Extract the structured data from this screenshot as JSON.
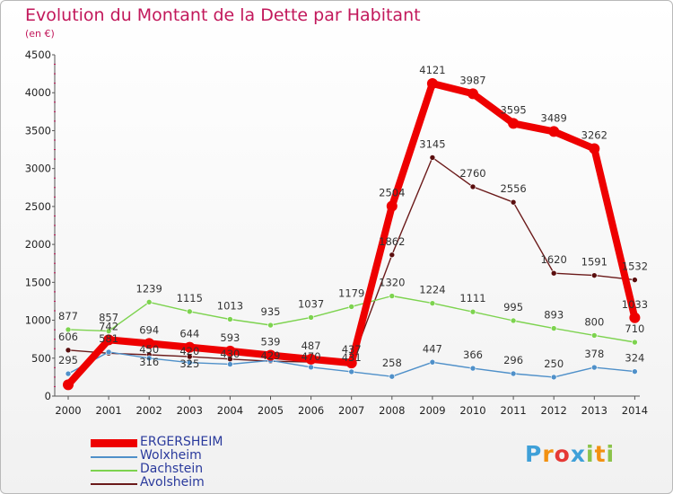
{
  "title": "Evolution du Montant de la Dette par Habitant",
  "unit_label": "(en €)",
  "logo": {
    "text": "Proxiti",
    "letters": [
      "P",
      "r",
      "o",
      "x",
      "i",
      "t",
      "i"
    ],
    "colors": [
      "#3fa0d8",
      "#f29111",
      "#e53935",
      "#3fa0d8",
      "#8bc34a",
      "#f29111",
      "#8bc34a"
    ]
  },
  "chart_data": {
    "type": "line",
    "title": "Evolution du Montant de la Dette par Habitant",
    "ylabel": "(en €)",
    "xlabel": "",
    "ylim": [
      0,
      4500
    ],
    "yticks": [
      0,
      500,
      1000,
      1500,
      2000,
      2500,
      3000,
      3500,
      4000,
      4500
    ],
    "categories": [
      "2000",
      "2001",
      "2002",
      "2003",
      "2004",
      "2005",
      "2006",
      "2007",
      "2008",
      "2009",
      "2010",
      "2011",
      "2012",
      "2013",
      "2014"
    ],
    "grid": false,
    "legend_position": "bottom-left",
    "series": [
      {
        "name": "Avolsheim",
        "color": "#6b1a1a",
        "marker": "#5a0e0e",
        "values": [
          606,
          565,
          545,
          520,
          488,
          459,
          450,
          440,
          1862,
          3145,
          2760,
          2556,
          1620,
          1591,
          1532
        ],
        "labels": [
          "606",
          "",
          "",
          "",
          "",
          "",
          "",
          "",
          "1862",
          "3145",
          "2760",
          "2556",
          "1620",
          "1591",
          "1532"
        ]
      },
      {
        "name": "Dachstein",
        "color": "#7dd34f",
        "marker": "#7dd34f",
        "values": [
          877,
          857,
          1239,
          1115,
          1013,
          935,
          1037,
          1179,
          1320,
          1224,
          1111,
          995,
          893,
          800,
          710
        ],
        "labels": [
          "877",
          "857",
          "1239",
          "1115",
          "1013",
          "935",
          "1037",
          "1179",
          "1320",
          "1224",
          "1111",
          "995",
          "893",
          "800",
          "710"
        ]
      },
      {
        "name": "Wolxheim",
        "color": "#4f90c9",
        "marker": "#4f90c9",
        "values": [
          295,
          581,
          500,
          442,
          420,
          470,
          381,
          321,
          258,
          447,
          366,
          296,
          250,
          378,
          324
        ],
        "labels": [
          "295",
          "581",
          "",
          "",
          "",
          "",
          "",
          "",
          "258",
          "447",
          "366",
          "296",
          "250",
          "378",
          "324"
        ]
      },
      {
        "name": "ERGERSHEIM",
        "color": "#ee0000",
        "marker": "#ee0000",
        "values": [
          150,
          742,
          694,
          644,
          593,
          539,
          487,
          437,
          2504,
          4121,
          3987,
          3595,
          3489,
          3262,
          1033
        ],
        "labels": [
          "",
          "742",
          "694",
          "644",
          "593",
          "539",
          "487",
          "437",
          "2504",
          "4121",
          "3987",
          "3595",
          "3489",
          "3262",
          "1033"
        ]
      }
    ],
    "extra_labels": [
      "450",
      "420",
      "430",
      "429",
      "470",
      "431",
      "316",
      "325"
    ]
  }
}
